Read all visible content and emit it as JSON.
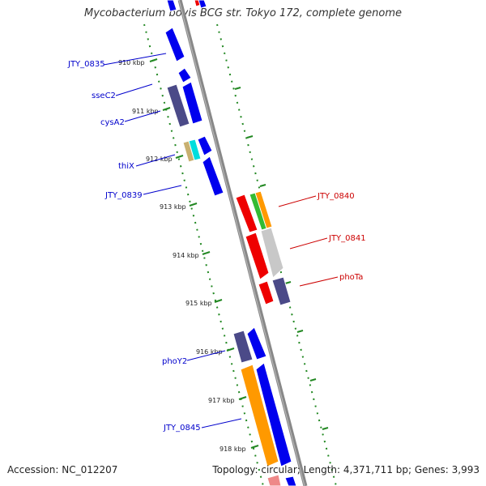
{
  "title": "Mycobacterium bovis BCG str. Tokyo 172, complete genome",
  "footer": {
    "accession": "Accession: NC_012207",
    "summary": "Topology: circular; Length: 4,371,711 bp; Genes: 3,993"
  },
  "colors": {
    "label_blue": "#0000cc",
    "label_red": "#cc0000",
    "backbone": "#888888",
    "tick_green": "#228822",
    "gene_blue": "#0000ee",
    "gene_navy": "#4b4a88",
    "gene_red": "#ee0000",
    "gene_orange": "#ff9900",
    "gene_green": "#33bb33",
    "gene_gray": "#c8c8c8",
    "gene_cyan": "#00dddd",
    "gene_khaki": "#c8b070"
  },
  "kbp_ticks": [
    "910 kbp",
    "911 kbp",
    "912 kbp",
    "913 kbp",
    "914 kbp",
    "915 kbp",
    "916 kbp",
    "917 kbp",
    "918 kbp"
  ],
  "left_labels": [
    "JTY_0835",
    "sseC2",
    "cysA2",
    "thiX",
    "JTY_0839",
    "phoY2",
    "JTY_0845"
  ],
  "right_labels": [
    "JTY_0840",
    "JTY_0841",
    "phoTa"
  ]
}
